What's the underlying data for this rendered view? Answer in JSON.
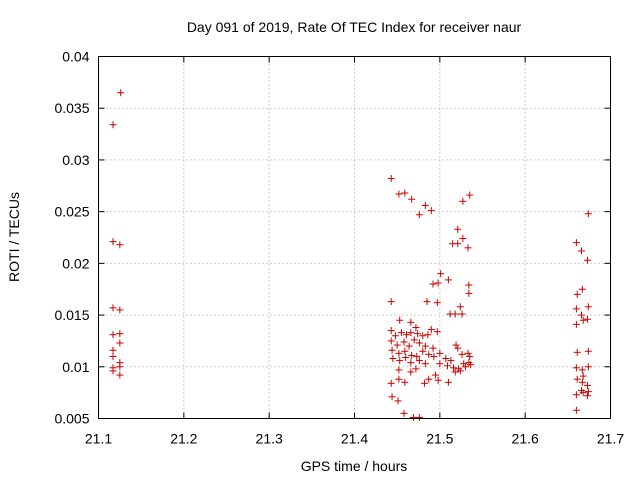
{
  "chart_data": {
    "type": "scatter",
    "title": "Day 091 of 2019, Rate Of TEC Index for receiver naur",
    "xlabel": "GPS time / hours",
    "ylabel": "ROTI / TECUs",
    "xlim": [
      21.1,
      21.7
    ],
    "ylim": [
      0.005,
      0.04
    ],
    "x_ticks": [
      "21.1",
      "21.2",
      "21.3",
      "21.4",
      "21.5",
      "21.6",
      "21.7"
    ],
    "y_ticks": [
      "0.005",
      "0.01",
      "0.015",
      "0.02",
      "0.025",
      "0.03",
      "0.035",
      "0.04"
    ],
    "grid": true,
    "marker": "+",
    "marker_color": "#cc0000",
    "series": [
      {
        "name": "ROTI",
        "points": [
          [
            21.126,
            0.0365
          ],
          [
            21.117,
            0.0334
          ],
          [
            21.117,
            0.0221
          ],
          [
            21.125,
            0.0218
          ],
          [
            21.117,
            0.0157
          ],
          [
            21.125,
            0.0155
          ],
          [
            21.117,
            0.0131
          ],
          [
            21.125,
            0.0132
          ],
          [
            21.125,
            0.0123
          ],
          [
            21.117,
            0.0116
          ],
          [
            21.117,
            0.011
          ],
          [
            21.125,
            0.0104
          ],
          [
            21.117,
            0.0099
          ],
          [
            21.125,
            0.01
          ],
          [
            21.117,
            0.0096
          ],
          [
            21.125,
            0.0092
          ],
          [
            21.443,
            0.0282
          ],
          [
            21.452,
            0.0267
          ],
          [
            21.459,
            0.0268
          ],
          [
            21.467,
            0.0262
          ],
          [
            21.476,
            0.0247
          ],
          [
            21.483,
            0.0256
          ],
          [
            21.49,
            0.0251
          ],
          [
            21.521,
            0.0233
          ],
          [
            21.515,
            0.0219
          ],
          [
            21.521,
            0.0219
          ],
          [
            21.527,
            0.0224
          ],
          [
            21.533,
            0.0215
          ],
          [
            21.527,
            0.026
          ],
          [
            21.535,
            0.0266
          ],
          [
            21.501,
            0.019
          ],
          [
            21.498,
            0.0181
          ],
          [
            21.492,
            0.018
          ],
          [
            21.51,
            0.0184
          ],
          [
            21.534,
            0.0179
          ],
          [
            21.534,
            0.0171
          ],
          [
            21.443,
            0.0163
          ],
          [
            21.485,
            0.0163
          ],
          [
            21.497,
            0.0162
          ],
          [
            21.512,
            0.0151
          ],
          [
            21.518,
            0.0151
          ],
          [
            21.524,
            0.0158
          ],
          [
            21.526,
            0.0151
          ],
          [
            21.453,
            0.0145
          ],
          [
            21.466,
            0.0143
          ],
          [
            21.472,
            0.0138
          ],
          [
            21.49,
            0.0136
          ],
          [
            21.497,
            0.0134
          ],
          [
            21.443,
            0.0135
          ],
          [
            21.448,
            0.013
          ],
          [
            21.455,
            0.0133
          ],
          [
            21.461,
            0.0131
          ],
          [
            21.466,
            0.0133
          ],
          [
            21.474,
            0.0132
          ],
          [
            21.48,
            0.013
          ],
          [
            21.486,
            0.0131
          ],
          [
            21.443,
            0.0125
          ],
          [
            21.45,
            0.0121
          ],
          [
            21.458,
            0.0124
          ],
          [
            21.464,
            0.012
          ],
          [
            21.47,
            0.0126
          ],
          [
            21.476,
            0.0123
          ],
          [
            21.483,
            0.012
          ],
          [
            21.492,
            0.0118
          ],
          [
            21.444,
            0.0116
          ],
          [
            21.452,
            0.0113
          ],
          [
            21.459,
            0.0115
          ],
          [
            21.467,
            0.0111
          ],
          [
            21.473,
            0.011
          ],
          [
            21.48,
            0.0115
          ],
          [
            21.487,
            0.0112
          ],
          [
            21.493,
            0.011
          ],
          [
            21.5,
            0.0113
          ],
          [
            21.507,
            0.0108
          ],
          [
            21.513,
            0.0106
          ],
          [
            21.519,
            0.0121
          ],
          [
            21.521,
            0.0118
          ],
          [
            21.526,
            0.0112
          ],
          [
            21.533,
            0.0113
          ],
          [
            21.535,
            0.011
          ],
          [
            21.445,
            0.0108
          ],
          [
            21.453,
            0.0106
          ],
          [
            21.46,
            0.0109
          ],
          [
            21.466,
            0.0104
          ],
          [
            21.476,
            0.0106
          ],
          [
            21.483,
            0.0103
          ],
          [
            21.5,
            0.0103
          ],
          [
            21.509,
            0.0101
          ],
          [
            21.516,
            0.0099
          ],
          [
            21.522,
            0.0098
          ],
          [
            21.528,
            0.0103
          ],
          [
            21.534,
            0.0104
          ],
          [
            21.536,
            0.0102
          ],
          [
            21.452,
            0.0097
          ],
          [
            21.466,
            0.0095
          ],
          [
            21.472,
            0.0098
          ],
          [
            21.495,
            0.0092
          ],
          [
            21.518,
            0.0095
          ],
          [
            21.524,
            0.0096
          ],
          [
            21.53,
            0.01
          ],
          [
            21.487,
            0.0088
          ],
          [
            21.498,
            0.0087
          ],
          [
            21.51,
            0.0085
          ],
          [
            21.443,
            0.0084
          ],
          [
            21.452,
            0.0088
          ],
          [
            21.459,
            0.0085
          ],
          [
            21.482,
            0.0084
          ],
          [
            21.444,
            0.0071
          ],
          [
            21.451,
            0.0067
          ],
          [
            21.458,
            0.0055
          ],
          [
            21.469,
            0.0051
          ],
          [
            21.476,
            0.0051
          ],
          [
            21.674,
            0.0248
          ],
          [
            21.66,
            0.022
          ],
          [
            21.666,
            0.0212
          ],
          [
            21.673,
            0.0203
          ],
          [
            21.667,
            0.0175
          ],
          [
            21.661,
            0.017
          ],
          [
            21.66,
            0.0156
          ],
          [
            21.674,
            0.0158
          ],
          [
            21.66,
            0.0141
          ],
          [
            21.666,
            0.015
          ],
          [
            21.668,
            0.0145
          ],
          [
            21.673,
            0.0146
          ],
          [
            21.661,
            0.0114
          ],
          [
            21.674,
            0.0115
          ],
          [
            21.66,
            0.0099
          ],
          [
            21.667,
            0.0097
          ],
          [
            21.674,
            0.01
          ],
          [
            21.668,
            0.0091
          ],
          [
            21.661,
            0.0088
          ],
          [
            21.667,
            0.0085
          ],
          [
            21.673,
            0.0082
          ],
          [
            21.666,
            0.0077
          ],
          [
            21.674,
            0.0076
          ],
          [
            21.66,
            0.0073
          ],
          [
            21.668,
            0.0075
          ],
          [
            21.673,
            0.0072
          ],
          [
            21.66,
            0.0058
          ]
        ]
      }
    ]
  }
}
